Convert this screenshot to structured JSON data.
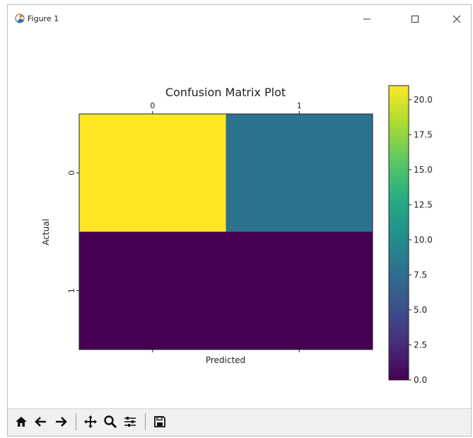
{
  "window": {
    "title": "Figure 1",
    "icons": {
      "app": "matplotlib-icon",
      "minimize": "minimize-icon",
      "maximize": "maximize-icon",
      "close": "close-icon"
    }
  },
  "toolbar": {
    "buttons": [
      {
        "name": "home",
        "icon": "home-icon"
      },
      {
        "name": "back",
        "icon": "arrow-left-icon"
      },
      {
        "name": "forward",
        "icon": "arrow-right-icon"
      },
      {
        "name": "pan",
        "icon": "move-icon"
      },
      {
        "name": "zoom",
        "icon": "zoom-icon"
      },
      {
        "name": "configure-subplots",
        "icon": "sliders-icon"
      },
      {
        "name": "save",
        "icon": "save-icon"
      }
    ]
  },
  "chart_data": {
    "type": "heatmap",
    "title": "Confusion Matrix Plot",
    "xlabel": "Predicted",
    "ylabel": "Actual",
    "x_categories": [
      "0",
      "1"
    ],
    "y_categories": [
      "0",
      "1"
    ],
    "values": [
      [
        21,
        8
      ],
      [
        0,
        0
      ]
    ],
    "colormap": "viridis",
    "colorbar": {
      "min": 0,
      "max": 21,
      "ticks": [
        "0.0",
        "2.5",
        "5.0",
        "7.5",
        "10.0",
        "12.5",
        "15.0",
        "17.5",
        "20.0"
      ]
    },
    "x_ticks_position": "top"
  }
}
